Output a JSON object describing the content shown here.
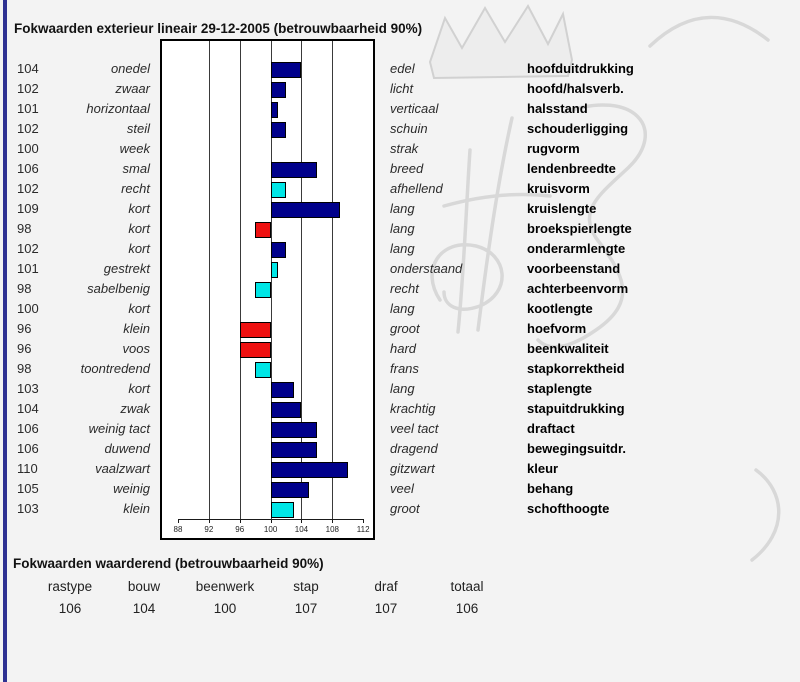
{
  "header": {
    "title": "Fokwaarden exterieur lineair 29-12-2005 (betrouwbaarheid 90%)"
  },
  "chart_data": {
    "type": "bar",
    "orientation": "horizontal",
    "baseline": 100,
    "xlim": [
      86,
      114
    ],
    "axis_ticks": [
      88,
      92,
      96,
      100,
      104,
      108,
      112
    ],
    "gridlines": [
      92,
      96,
      100,
      104,
      108
    ],
    "legend": "none",
    "colors": {
      "blue": "#00008b",
      "red": "#ee1111",
      "cyan": "#00e6e6"
    },
    "rows": [
      {
        "value": 104,
        "low": "onedel",
        "high": "edel",
        "trait": "hoofduitdrukking",
        "color": "blue"
      },
      {
        "value": 102,
        "low": "zwaar",
        "high": "licht",
        "trait": "hoofd/halsverb.",
        "color": "blue"
      },
      {
        "value": 101,
        "low": "horizontaal",
        "high": "verticaal",
        "trait": "halsstand",
        "color": "blue"
      },
      {
        "value": 102,
        "low": "steil",
        "high": "schuin",
        "trait": "schouderligging",
        "color": "blue"
      },
      {
        "value": 100,
        "low": "week",
        "high": "strak",
        "trait": "rugvorm",
        "color": null
      },
      {
        "value": 106,
        "low": "smal",
        "high": "breed",
        "trait": "lendenbreedte",
        "color": "blue"
      },
      {
        "value": 102,
        "low": "recht",
        "high": "afhellend",
        "trait": "kruisvorm",
        "color": "cyan"
      },
      {
        "value": 109,
        "low": "kort",
        "high": "lang",
        "trait": "kruislengte",
        "color": "blue"
      },
      {
        "value": 98,
        "low": "kort",
        "high": "lang",
        "trait": "broekspierlengte",
        "color": "red"
      },
      {
        "value": 102,
        "low": "kort",
        "high": "lang",
        "trait": "onderarmlengte",
        "color": "blue"
      },
      {
        "value": 101,
        "low": "gestrekt",
        "high": "onderstaand",
        "trait": "voorbeenstand",
        "color": "cyan"
      },
      {
        "value": 98,
        "low": "sabelbenig",
        "high": "recht",
        "trait": "achterbeenvorm",
        "color": "cyan"
      },
      {
        "value": 100,
        "low": "kort",
        "high": "lang",
        "trait": "kootlengte",
        "color": null
      },
      {
        "value": 96,
        "low": "klein",
        "high": "groot",
        "trait": "hoefvorm",
        "color": "red"
      },
      {
        "value": 96,
        "low": "voos",
        "high": "hard",
        "trait": "beenkwaliteit",
        "color": "red"
      },
      {
        "value": 98,
        "low": "toontredend",
        "high": "frans",
        "trait": "stapkorrektheid",
        "color": "cyan"
      },
      {
        "value": 103,
        "low": "kort",
        "high": "lang",
        "trait": "staplengte",
        "color": "blue"
      },
      {
        "value": 104,
        "low": "zwak",
        "high": "krachtig",
        "trait": "stapuitdrukking",
        "color": "blue"
      },
      {
        "value": 106,
        "low": "weinig tact",
        "high": "veel tact",
        "trait": "draftact",
        "color": "blue"
      },
      {
        "value": 106,
        "low": "duwend",
        "high": "dragend",
        "trait": "bewegingsuitdr.",
        "color": "blue"
      },
      {
        "value": 110,
        "low": "vaalzwart",
        "high": "gitzwart",
        "trait": "kleur",
        "color": "blue"
      },
      {
        "value": 105,
        "low": "weinig",
        "high": "veel",
        "trait": "behang",
        "color": "blue"
      },
      {
        "value": 103,
        "low": "klein",
        "high": "groot",
        "trait": "schofthoogte",
        "color": "cyan"
      }
    ]
  },
  "summary": {
    "title": "Fokwaarden waarderend (betrouwbaarheid 90%)",
    "columns": [
      {
        "label": "rastype",
        "value": "106"
      },
      {
        "label": "bouw",
        "value": "104"
      },
      {
        "label": "beenwerk",
        "value": "100"
      },
      {
        "label": "stap",
        "value": "107"
      },
      {
        "label": "draf",
        "value": "107"
      },
      {
        "label": "totaal",
        "value": "106"
      }
    ]
  },
  "theme": {
    "accent_navy": "#2e3192",
    "background": "#f3f3f3",
    "watermark_gray": "#d4d4d4"
  }
}
